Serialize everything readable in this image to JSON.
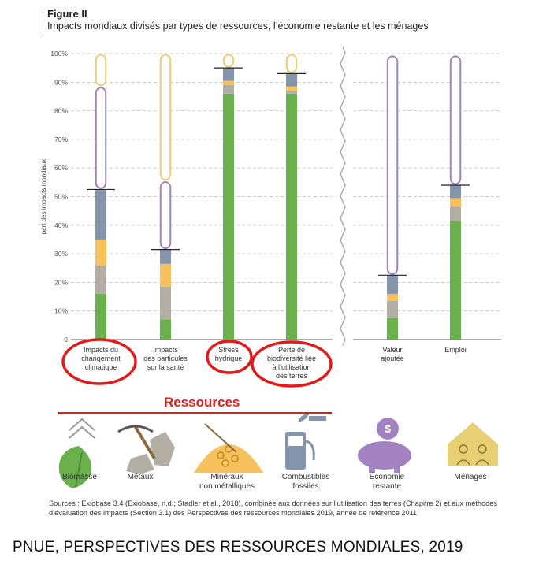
{
  "figure": {
    "label": "Figure II",
    "subtitle": "Impacts mondiaux divisés par types de ressources, l’économie restante et les ménages"
  },
  "chart_data": {
    "type": "bar",
    "stacked": true,
    "ylabel": "part des impacts mondiaux",
    "ylim": [
      0,
      100
    ],
    "yticks": [
      "0",
      "10%",
      "20%",
      "30%",
      "40%",
      "50%",
      "60%",
      "70%",
      "80%",
      "90%",
      "100%"
    ],
    "grid": true,
    "categories": [
      "Impacts du changement climatique",
      "Impacts des particules sur la santé",
      "Stress hydrique",
      "Perte de biodiversité liée à l’utilisation des terres",
      "Valeur ajoutée",
      "Emploi"
    ],
    "category_lines": [
      [
        "Impacts du",
        "changement",
        "climatique"
      ],
      [
        "Impacts",
        "des particules",
        "sur la santé"
      ],
      [
        "Stress",
        "hydrique"
      ],
      [
        "Perte de",
        "biodiversité liée",
        "à l’utilisation",
        "des terres"
      ],
      [
        "Valeur",
        "ajoutée"
      ],
      [
        "Emploi"
      ]
    ],
    "panels": [
      [
        0,
        1,
        2,
        3
      ],
      [
        4,
        5
      ]
    ],
    "series": [
      {
        "name": "Biomasse",
        "color": "#6ab04c",
        "values": [
          16,
          7,
          86,
          86,
          7.5,
          41.5
        ]
      },
      {
        "name": "Métaux",
        "color": "#b2aea4",
        "values": [
          10,
          11.5,
          3,
          1,
          6,
          5
        ]
      },
      {
        "name": "Minéraux non métalliques",
        "color": "#f7c15d",
        "values": [
          9,
          8,
          1.5,
          1.5,
          2.5,
          3
        ]
      },
      {
        "name": "Combustibles fossiles",
        "color": "#8394ab",
        "values": [
          17.5,
          5,
          4.5,
          4.5,
          6.5,
          4.5
        ]
      },
      {
        "name": "Économie restante",
        "color": "#a382c2",
        "values": [
          36,
          24,
          0,
          0,
          77,
          45.5
        ]
      },
      {
        "name": "Ménages",
        "color": "#e8cf74",
        "values": [
          11.5,
          44.5,
          5,
          7,
          0,
          0
        ]
      }
    ],
    "resource_totals": [
      52.5,
      31.5,
      95,
      93,
      22.5,
      54
    ],
    "highlighted_categories": [
      0,
      2,
      3
    ]
  },
  "resources_label": "Ressources",
  "icons": [
    {
      "name": "biomass-icon",
      "label": [
        "Biomasse"
      ],
      "color": "#6ab04c"
    },
    {
      "name": "metals-icon",
      "label": [
        "Métaux"
      ],
      "color": "#b2aea4"
    },
    {
      "name": "minerals-icon",
      "label": [
        "Minéraux",
        "non métalliques"
      ],
      "color": "#f7c15d"
    },
    {
      "name": "fossil-fuels-icon",
      "label": [
        "Combustibles",
        "fossiles"
      ],
      "color": "#8394ab"
    },
    {
      "name": "remaining-economy-icon",
      "label": [
        "Économie",
        "restante"
      ],
      "color": "#a382c2"
    },
    {
      "name": "households-icon",
      "label": [
        "Ménages"
      ],
      "color": "#e8cf74"
    }
  ],
  "sources": "Sources : Exiobase 3.4 (Exiobase, n.d.; Stadler et al., 2018), combinée aux données sur l’utilisation des terres (Chapitre 2) et aux méthodes d’évaluation des impacts (Section 3.1) des Perspectives des ressources mondiales 2019, année de référence 2011",
  "footer": "PNUE, PERSPECTIVES DES RESSOURCES MONDIALES, 2019"
}
